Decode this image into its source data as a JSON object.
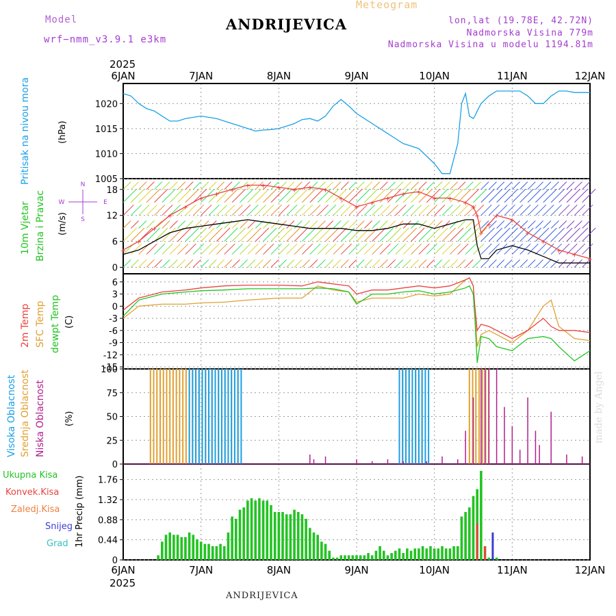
{
  "header": {
    "model_label": "Model",
    "model_version": "wrf−nmm_v3.9.1 e3km",
    "location": "ANDRIJEVICA",
    "product": "Meteogram",
    "lonlat": "lon,lat (19.78E, 42.72N)",
    "altitude": "Nadmorska Visina 779m",
    "model_altitude": "Nadmorska Visina u modelu 1194.81m"
  },
  "footer": {
    "location": "ANDRIJEVICA",
    "credit": "made by Angel"
  },
  "colors": {
    "pressure": "#1aa0e6",
    "temp2m": "#e8433f",
    "sfc": "#e0a030",
    "dewpt": "#22c322",
    "high_cloud": "#1aa0e6",
    "mid_cloud": "#e0a030",
    "low_cloud": "#b01e8c",
    "total_precip": "#22c322",
    "convective": "#e8433f",
    "frozen": "#f08040",
    "snow": "#3c3cd0",
    "graupel": "#36c0c0",
    "model_purple": "#a43ccf"
  },
  "chart_data": [
    {
      "type": "line",
      "name": "pressure",
      "labels": [
        "Pritisak na nivou mora",
        "(hPa)"
      ],
      "year": "2025",
      "x_ticks": [
        "6JAN",
        "7JAN",
        "8JAN",
        "9JAN",
        "10JAN",
        "11JAN",
        "12JAN"
      ],
      "ylim": [
        1005,
        1024
      ],
      "yticks": [
        "1005",
        "1010",
        "1015",
        "1020"
      ],
      "x": [
        0,
        0.1,
        0.2,
        0.3,
        0.4,
        0.5,
        0.6,
        0.7,
        0.8,
        1.0,
        1.2,
        1.4,
        1.6,
        1.7,
        1.8,
        1.9,
        2.0,
        2.1,
        2.2,
        2.3,
        2.4,
        2.5,
        2.6,
        2.7,
        2.8,
        2.9,
        3.0,
        3.1,
        3.2,
        3.3,
        3.4,
        3.5,
        3.6,
        3.7,
        3.8,
        3.9,
        4.0,
        4.1,
        4.2,
        4.3,
        4.35,
        4.4,
        4.45,
        4.5,
        4.52,
        4.55,
        4.6,
        4.7,
        4.8,
        4.9,
        5.0,
        5.1,
        5.2,
        5.3,
        5.4,
        5.5,
        5.6,
        5.7,
        5.8,
        5.9,
        6.0
      ],
      "values": [
        1022,
        1021.5,
        1020,
        1019,
        1018.5,
        1017.5,
        1016.5,
        1016.5,
        1017,
        1017.5,
        1017,
        1016,
        1015,
        1014.5,
        1014.7,
        1014.8,
        1015,
        1015.5,
        1016,
        1016.8,
        1017,
        1016.5,
        1017.5,
        1019.5,
        1020.8,
        1019.5,
        1018,
        1017,
        1016,
        1015,
        1014,
        1013,
        1012,
        1011.5,
        1011,
        1009.5,
        1008,
        1006,
        1006,
        1012,
        1020,
        1022,
        1017.5,
        1017,
        1017.5,
        1018.5,
        1020,
        1021.5,
        1022.5,
        1022.5,
        1022.5,
        1022.5,
        1021.5,
        1020,
        1020,
        1021.5,
        1022.5,
        1022.5,
        1022.2,
        1022.2,
        1022.2
      ]
    },
    {
      "type": "line",
      "name": "wind",
      "labels": [
        "10m Vjetar",
        "Brzina i Pravac",
        "(m/s)"
      ],
      "compass": {
        "north": "N",
        "south": "S",
        "west": "W",
        "east": "E"
      },
      "ylim": [
        -1.5,
        20.5
      ],
      "yticks": [
        "0",
        "6",
        "12",
        "18"
      ],
      "x": [
        0,
        0.2,
        0.4,
        0.6,
        0.8,
        1.0,
        1.2,
        1.4,
        1.6,
        1.8,
        2.0,
        2.2,
        2.4,
        2.6,
        2.8,
        3.0,
        3.2,
        3.4,
        3.6,
        3.8,
        4.0,
        4.2,
        4.4,
        4.5,
        4.55,
        4.6,
        4.7,
        4.8,
        5.0,
        5.2,
        5.4,
        5.6,
        5.8,
        6.0
      ],
      "speed": [
        3,
        4,
        6,
        8,
        9,
        9.5,
        10,
        10.5,
        11,
        10.5,
        10,
        9.5,
        9,
        9,
        9,
        8.5,
        8.5,
        9,
        10,
        10,
        9,
        10,
        11,
        11,
        5,
        2,
        2,
        4,
        5,
        4,
        2.5,
        1,
        1,
        1
      ],
      "gust": [
        4,
        6,
        9,
        12,
        14,
        16,
        17,
        18,
        19,
        19,
        18.5,
        18,
        18.5,
        18,
        16,
        14,
        15,
        16,
        17,
        17.5,
        16,
        16,
        15,
        14,
        12,
        8,
        10,
        12,
        11,
        8,
        6,
        4,
        3,
        2
      ]
    },
    {
      "type": "line",
      "name": "temperature",
      "labels": [
        "2m Temp",
        "SFC Temp",
        "dewpt Temp",
        "(C)"
      ],
      "ylim": [
        -15.5,
        8
      ],
      "yticks": [
        "-15",
        "-12",
        "-9",
        "-6",
        "-3",
        "0",
        "3",
        "6"
      ],
      "x": [
        0,
        0.2,
        0.5,
        0.8,
        1.0,
        1.3,
        1.6,
        2.0,
        2.3,
        2.5,
        2.7,
        2.9,
        3.0,
        3.2,
        3.4,
        3.6,
        3.8,
        4.0,
        4.2,
        4.4,
        4.45,
        4.5,
        4.52,
        4.55,
        4.6,
        4.7,
        4.8,
        5.0,
        5.2,
        5.4,
        5.5,
        5.6,
        5.8,
        6.0
      ],
      "t2m": [
        -1,
        2,
        3.5,
        4,
        4.5,
        5,
        5.2,
        5.2,
        5,
        6,
        5.5,
        5,
        3,
        4,
        4,
        4.5,
        5,
        4.5,
        5,
        6.5,
        7,
        5,
        0,
        -6,
        -4.5,
        -5,
        -6,
        -8,
        -6,
        -3,
        -5,
        -6,
        -6,
        -6.5
      ],
      "sfc": [
        -3,
        0,
        0.5,
        0.5,
        0.8,
        1,
        1.5,
        2,
        2,
        5,
        4,
        3.5,
        1,
        2,
        2,
        2,
        3,
        2.5,
        3,
        6.5,
        7,
        5,
        -1,
        -10,
        -7,
        -6,
        -7,
        -9,
        -6,
        0,
        1.5,
        -5,
        -8,
        -8.5
      ],
      "dewpt": [
        -2.5,
        1.5,
        3,
        3.5,
        3.8,
        4,
        4.3,
        4.3,
        4.3,
        4.5,
        4.3,
        3.5,
        0.5,
        3,
        3,
        3.5,
        3.8,
        3,
        3.5,
        4.5,
        5,
        3,
        -3,
        -14,
        -7.5,
        -8,
        -10,
        -11,
        -8,
        -7.5,
        -8,
        -10,
        -13.5,
        -11
      ]
    },
    {
      "type": "bar",
      "name": "cloud_cover",
      "labels": [
        "Visoka Oblacnost",
        "Srednja Oblacnost",
        "Niska Oblacnost",
        "(%)"
      ],
      "ylim": [
        0,
        100
      ],
      "yticks": [
        "0",
        "25",
        "50",
        "75",
        "100"
      ],
      "high_ranges": [
        [
          0.85,
          1.55,
          100
        ],
        [
          3.55,
          3.95,
          100
        ]
      ],
      "mid_ranges": [
        [
          0.35,
          1.5,
          100
        ],
        [
          3.55,
          3.85,
          100
        ],
        [
          4.45,
          4.7,
          100
        ]
      ],
      "low_x": [
        2.4,
        2.45,
        2.6,
        3.0,
        3.2,
        3.4,
        3.6,
        3.9,
        4.1,
        4.3,
        4.4,
        4.5,
        4.6,
        4.65,
        4.7,
        4.8,
        4.9,
        5.0,
        5.1,
        5.2,
        5.3,
        5.35,
        5.5,
        5.7,
        5.9
      ],
      "low_values": [
        10,
        5,
        8,
        5,
        3,
        5,
        3,
        3,
        8,
        5,
        35,
        70,
        100,
        100,
        100,
        100,
        60,
        40,
        15,
        70,
        35,
        20,
        55,
        10,
        8
      ]
    },
    {
      "type": "bar",
      "name": "precipitation",
      "labels": [
        "Ukupna Kisa",
        "Konvek.Kisa",
        "Zaledj.Kisa",
        "Snijeg",
        "Grad",
        "1hr Precip (mm)"
      ],
      "ylim": [
        0,
        2.1
      ],
      "yticks": [
        "0",
        "0.44",
        "0.88",
        "1.32",
        "1.76"
      ],
      "x_ticks": [
        "6JAN",
        "7JAN",
        "8JAN",
        "9JAN",
        "10JAN",
        "11JAN",
        "12JAN"
      ],
      "year": "2025",
      "total_x": [
        0.45,
        0.5,
        0.55,
        0.6,
        0.65,
        0.7,
        0.75,
        0.8,
        0.85,
        0.9,
        0.95,
        1.0,
        1.05,
        1.1,
        1.15,
        1.2,
        1.25,
        1.3,
        1.35,
        1.4,
        1.45,
        1.5,
        1.55,
        1.6,
        1.65,
        1.7,
        1.75,
        1.8,
        1.85,
        1.9,
        1.95,
        2.0,
        2.05,
        2.1,
        2.15,
        2.2,
        2.25,
        2.3,
        2.35,
        2.4,
        2.45,
        2.5,
        2.55,
        2.6,
        2.65,
        2.7,
        2.75,
        2.8,
        2.85,
        2.9,
        2.95,
        3.0,
        3.05,
        3.1,
        3.15,
        3.2,
        3.25,
        3.3,
        3.35,
        3.4,
        3.45,
        3.5,
        3.55,
        3.6,
        3.65,
        3.7,
        3.75,
        3.8,
        3.85,
        3.9,
        3.95,
        4.0,
        4.05,
        4.1,
        4.15,
        4.2,
        4.25,
        4.3,
        4.35,
        4.4,
        4.45,
        4.5,
        4.55,
        4.6,
        4.65,
        4.7,
        4.75,
        4.8
      ],
      "total_values": [
        0.1,
        0.4,
        0.55,
        0.6,
        0.55,
        0.55,
        0.5,
        0.5,
        0.6,
        0.55,
        0.45,
        0.4,
        0.35,
        0.35,
        0.3,
        0.3,
        0.35,
        0.3,
        0.6,
        0.95,
        0.9,
        1.1,
        1.15,
        1.3,
        1.35,
        1.3,
        1.35,
        1.3,
        1.3,
        1.2,
        1.05,
        1.05,
        1.05,
        1.0,
        1.0,
        1.1,
        1.05,
        1.0,
        0.9,
        0.7,
        0.6,
        0.55,
        0.4,
        0.35,
        0.2,
        0.05,
        0.05,
        0.1,
        0.1,
        0.1,
        0.1,
        0.1,
        0.1,
        0.1,
        0.15,
        0.1,
        0.2,
        0.3,
        0.2,
        0.1,
        0.15,
        0.2,
        0.25,
        0.15,
        0.25,
        0.2,
        0.25,
        0.25,
        0.3,
        0.25,
        0.3,
        0.25,
        0.25,
        0.3,
        0.25,
        0.25,
        0.3,
        0.3,
        0.95,
        1.05,
        1.15,
        1.4,
        1.55,
        1.95,
        0.3,
        0.05,
        0.05,
        0.05
      ],
      "convective_x": [
        4.55,
        4.65
      ],
      "convective_values": [
        0.8,
        0.3
      ],
      "snow_x": [
        4.75
      ],
      "snow_values": [
        0.6
      ]
    }
  ]
}
